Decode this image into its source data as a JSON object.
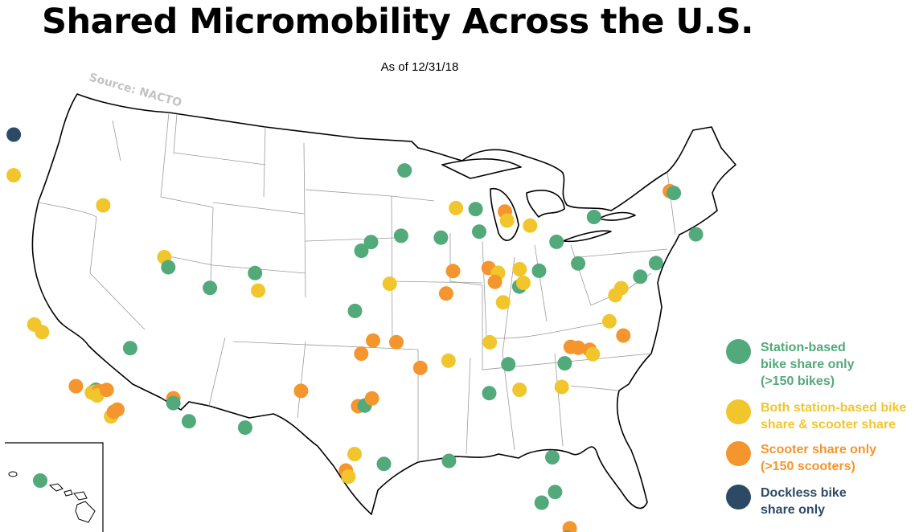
{
  "title": "Shared Micromobility Across the U.S.",
  "subtitle": "As of 12/31/18",
  "source": "Source: NACTO",
  "colors": {
    "station": "#52a97a",
    "both": "#f1c62c",
    "scooter": "#f4952d",
    "dockless": "#2c4a66"
  },
  "legend": [
    {
      "category": "station",
      "lines": [
        "Station-based",
        "bike share only",
        "(>150 bikes)"
      ]
    },
    {
      "category": "both",
      "lines": [
        "Both station-based bike",
        "share & scooter share"
      ]
    },
    {
      "category": "scooter",
      "lines": [
        "Scooter share only",
        "(>150 scooters)"
      ]
    },
    {
      "category": "dockless",
      "lines": [
        "Dockless bike",
        "share only"
      ]
    }
  ],
  "points": [
    {
      "category": "dockless",
      "loc": [
        -122.33,
        47.61
      ]
    },
    {
      "category": "both",
      "loc": [
        -122.68,
        45.52
      ]
    },
    {
      "category": "both",
      "loc": [
        -116.2,
        43.62
      ]
    },
    {
      "category": "station",
      "loc": [
        -93.27,
        44.98
      ]
    },
    {
      "category": "both",
      "loc": [
        -89.4,
        43.07
      ]
    },
    {
      "category": "both",
      "loc": [
        -111.89,
        40.76
      ]
    },
    {
      "category": "station",
      "loc": [
        -111.65,
        40.23
      ]
    },
    {
      "category": "station",
      "loc": [
        -104.99,
        39.74
      ]
    },
    {
      "category": "both",
      "loc": [
        -104.82,
        38.83
      ]
    },
    {
      "category": "station",
      "loc": [
        -108.55,
        39.06
      ]
    },
    {
      "category": "both",
      "loc": [
        -122.42,
        37.77
      ]
    },
    {
      "category": "both",
      "loc": [
        -121.89,
        37.34
      ]
    },
    {
      "category": "station",
      "loc": [
        -115.14,
        36.17
      ]
    },
    {
      "category": "scooter",
      "loc": [
        -119.7,
        34.42
      ]
    },
    {
      "category": "both",
      "loc": [
        -118.49,
        34.02
      ]
    },
    {
      "category": "station",
      "loc": [
        -118.15,
        34.15
      ]
    },
    {
      "category": "both",
      "loc": [
        -118.24,
        34.05
      ]
    },
    {
      "category": "scooter",
      "loc": [
        -117.92,
        34.07
      ]
    },
    {
      "category": "both",
      "loc": [
        -118.1,
        33.85
      ]
    },
    {
      "category": "scooter",
      "loc": [
        -117.3,
        34.1
      ]
    },
    {
      "category": "both",
      "loc": [
        -117.16,
        32.72
      ]
    },
    {
      "category": "scooter",
      "loc": [
        -116.9,
        32.95
      ]
    },
    {
      "category": "scooter",
      "loc": [
        -116.6,
        33.05
      ]
    },
    {
      "category": "scooter",
      "loc": [
        -112.07,
        33.45
      ]
    },
    {
      "category": "station",
      "loc": [
        -112.1,
        33.2
      ]
    },
    {
      "category": "station",
      "loc": [
        -110.97,
        32.22
      ]
    },
    {
      "category": "station",
      "loc": [
        -106.49,
        31.76
      ]
    },
    {
      "category": "station",
      "loc": [
        -95.94,
        41.26
      ]
    },
    {
      "category": "station",
      "loc": [
        -96.7,
        40.81
      ]
    },
    {
      "category": "station",
      "loc": [
        -93.62,
        41.59
      ]
    },
    {
      "category": "station",
      "loc": [
        -97.34,
        37.69
      ]
    },
    {
      "category": "both",
      "loc": [
        -94.58,
        39.1
      ]
    },
    {
      "category": "scooter",
      "loc": [
        -96.95,
        35.47
      ]
    },
    {
      "category": "scooter",
      "loc": [
        -95.99,
        36.15
      ]
    },
    {
      "category": "scooter",
      "loc": [
        -94.15,
        36.07
      ]
    },
    {
      "category": "scooter",
      "loc": [
        -101.85,
        33.58
      ]
    },
    {
      "category": "scooter",
      "loc": [
        -97.33,
        32.75
      ]
    },
    {
      "category": "station",
      "loc": [
        -96.8,
        32.78
      ]
    },
    {
      "category": "scooter",
      "loc": [
        -96.2,
        33.15
      ]
    },
    {
      "category": "both",
      "loc": [
        -97.74,
        30.27
      ]
    },
    {
      "category": "scooter",
      "loc": [
        -98.49,
        29.42
      ]
    },
    {
      "category": "both",
      "loc": [
        -98.3,
        29.1
      ]
    },
    {
      "category": "station",
      "loc": [
        -95.37,
        29.76
      ]
    },
    {
      "category": "station",
      "loc": [
        -87.9,
        43.04
      ]
    },
    {
      "category": "station",
      "loc": [
        -90.57,
        41.52
      ]
    },
    {
      "category": "station",
      "loc": [
        -87.63,
        41.88
      ]
    },
    {
      "category": "scooter",
      "loc": [
        -89.65,
        39.8
      ]
    },
    {
      "category": "scooter",
      "loc": [
        -90.2,
        38.63
      ]
    },
    {
      "category": "scooter",
      "loc": [
        -86.9,
        40.0
      ]
    },
    {
      "category": "both",
      "loc": [
        -86.16,
        39.77
      ]
    },
    {
      "category": "scooter",
      "loc": [
        -86.4,
        39.3
      ]
    },
    {
      "category": "station",
      "loc": [
        -84.51,
        39.1
      ]
    },
    {
      "category": "both",
      "loc": [
        -84.2,
        39.3
      ]
    },
    {
      "category": "both",
      "loc": [
        -85.76,
        38.25
      ]
    },
    {
      "category": "both",
      "loc": [
        -84.5,
        40.0
      ]
    },
    {
      "category": "scooter",
      "loc": [
        -85.67,
        42.96
      ]
    },
    {
      "category": "both",
      "loc": [
        -85.5,
        42.5
      ]
    },
    {
      "category": "both",
      "loc": [
        -83.74,
        42.28
      ]
    },
    {
      "category": "station",
      "loc": [
        -81.69,
        41.5
      ]
    },
    {
      "category": "station",
      "loc": [
        -82.99,
        39.96
      ]
    },
    {
      "category": "station",
      "loc": [
        -78.88,
        42.89
      ]
    },
    {
      "category": "station",
      "loc": [
        -79.99,
        40.44
      ]
    },
    {
      "category": "both",
      "loc": [
        -86.78,
        36.16
      ]
    },
    {
      "category": "both",
      "loc": [
        -90.05,
        35.15
      ]
    },
    {
      "category": "scooter",
      "loc": [
        -92.29,
        34.75
      ]
    },
    {
      "category": "station",
      "loc": [
        -85.31,
        35.05
      ]
    },
    {
      "category": "station",
      "loc": [
        -86.81,
        33.52
      ]
    },
    {
      "category": "both",
      "loc": [
        -84.39,
        33.75
      ]
    },
    {
      "category": "station",
      "loc": [
        -81.66,
        30.33
      ]
    },
    {
      "category": "station",
      "loc": [
        -90.07,
        29.95
      ]
    },
    {
      "category": "station",
      "loc": [
        -81.38,
        28.54
      ]
    },
    {
      "category": "station",
      "loc": [
        -82.46,
        27.95
      ]
    },
    {
      "category": "scooter",
      "loc": [
        -80.1,
        26.7
      ]
    },
    {
      "category": "station",
      "loc": [
        -80.3,
        26.2
      ]
    },
    {
      "category": "scooter",
      "loc": [
        -80.14,
        26.12
      ]
    },
    {
      "category": "station",
      "loc": [
        -80.19,
        25.76
      ]
    },
    {
      "category": "station",
      "loc": [
        -80.84,
        35.23
      ]
    },
    {
      "category": "both",
      "loc": [
        -81.03,
        34.0
      ]
    },
    {
      "category": "scooter",
      "loc": [
        -80.4,
        36.1
      ]
    },
    {
      "category": "scooter",
      "loc": [
        -79.8,
        36.07
      ]
    },
    {
      "category": "scooter",
      "loc": [
        -78.9,
        36.0
      ]
    },
    {
      "category": "both",
      "loc": [
        -78.64,
        35.78
      ]
    },
    {
      "category": "scooter",
      "loc": [
        -76.29,
        36.85
      ]
    },
    {
      "category": "both",
      "loc": [
        -77.43,
        37.54
      ]
    },
    {
      "category": "both",
      "loc": [
        -77.04,
        38.91
      ]
    },
    {
      "category": "both",
      "loc": [
        -76.6,
        39.29
      ]
    },
    {
      "category": "station",
      "loc": [
        -75.17,
        39.95
      ]
    },
    {
      "category": "station",
      "loc": [
        -74.0,
        40.71
      ]
    },
    {
      "category": "scooter",
      "loc": [
        -73.21,
        44.48
      ]
    },
    {
      "category": "station",
      "loc": [
        -72.9,
        44.4
      ]
    },
    {
      "category": "station",
      "loc": [
        -71.06,
        42.36
      ]
    },
    {
      "category": "station",
      "loc": [
        -157.86,
        21.31
      ]
    }
  ]
}
